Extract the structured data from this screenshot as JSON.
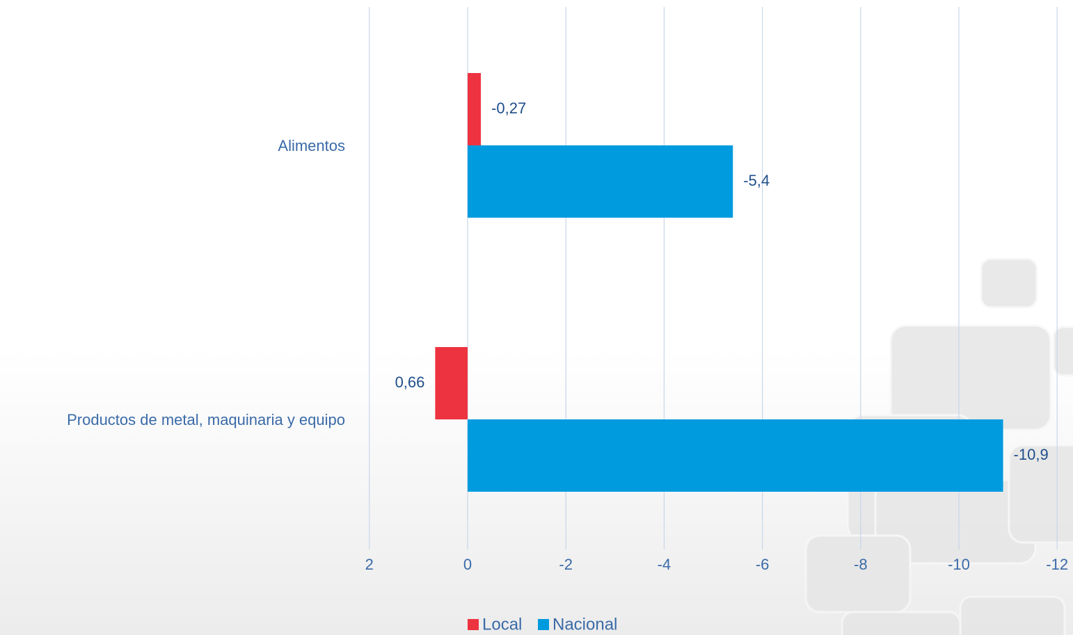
{
  "chart_data": {
    "type": "bar",
    "orientation": "horizontal",
    "categories": [
      "Alimentos",
      "Productos de metal, maquinaria y equipo"
    ],
    "series": [
      {
        "name": "Local",
        "color": "#ee3340",
        "values": [
          -0.27,
          0.66
        ],
        "labels": [
          "-0,27",
          "0,66"
        ]
      },
      {
        "name": "Nacional",
        "color": "#009bde",
        "values": [
          -5.4,
          -10.9
        ],
        "labels": [
          "-5,4",
          "-10,9"
        ]
      }
    ],
    "x_axis": {
      "reversed": true,
      "range": [
        2,
        -12
      ],
      "ticks": [
        2,
        0,
        -2,
        -4,
        -6,
        -8,
        -10,
        -12
      ],
      "tick_labels": [
        "2",
        "0",
        "-2",
        "-4",
        "-6",
        "-8",
        "-10",
        "-12"
      ]
    },
    "title": "",
    "xlabel": "",
    "ylabel": "",
    "grid": true,
    "legend_position": "bottom",
    "colors": {
      "text": "#3a6aa8",
      "grid": "#c8d6ea",
      "local": "#ee3340",
      "nacional": "#009bde"
    }
  }
}
